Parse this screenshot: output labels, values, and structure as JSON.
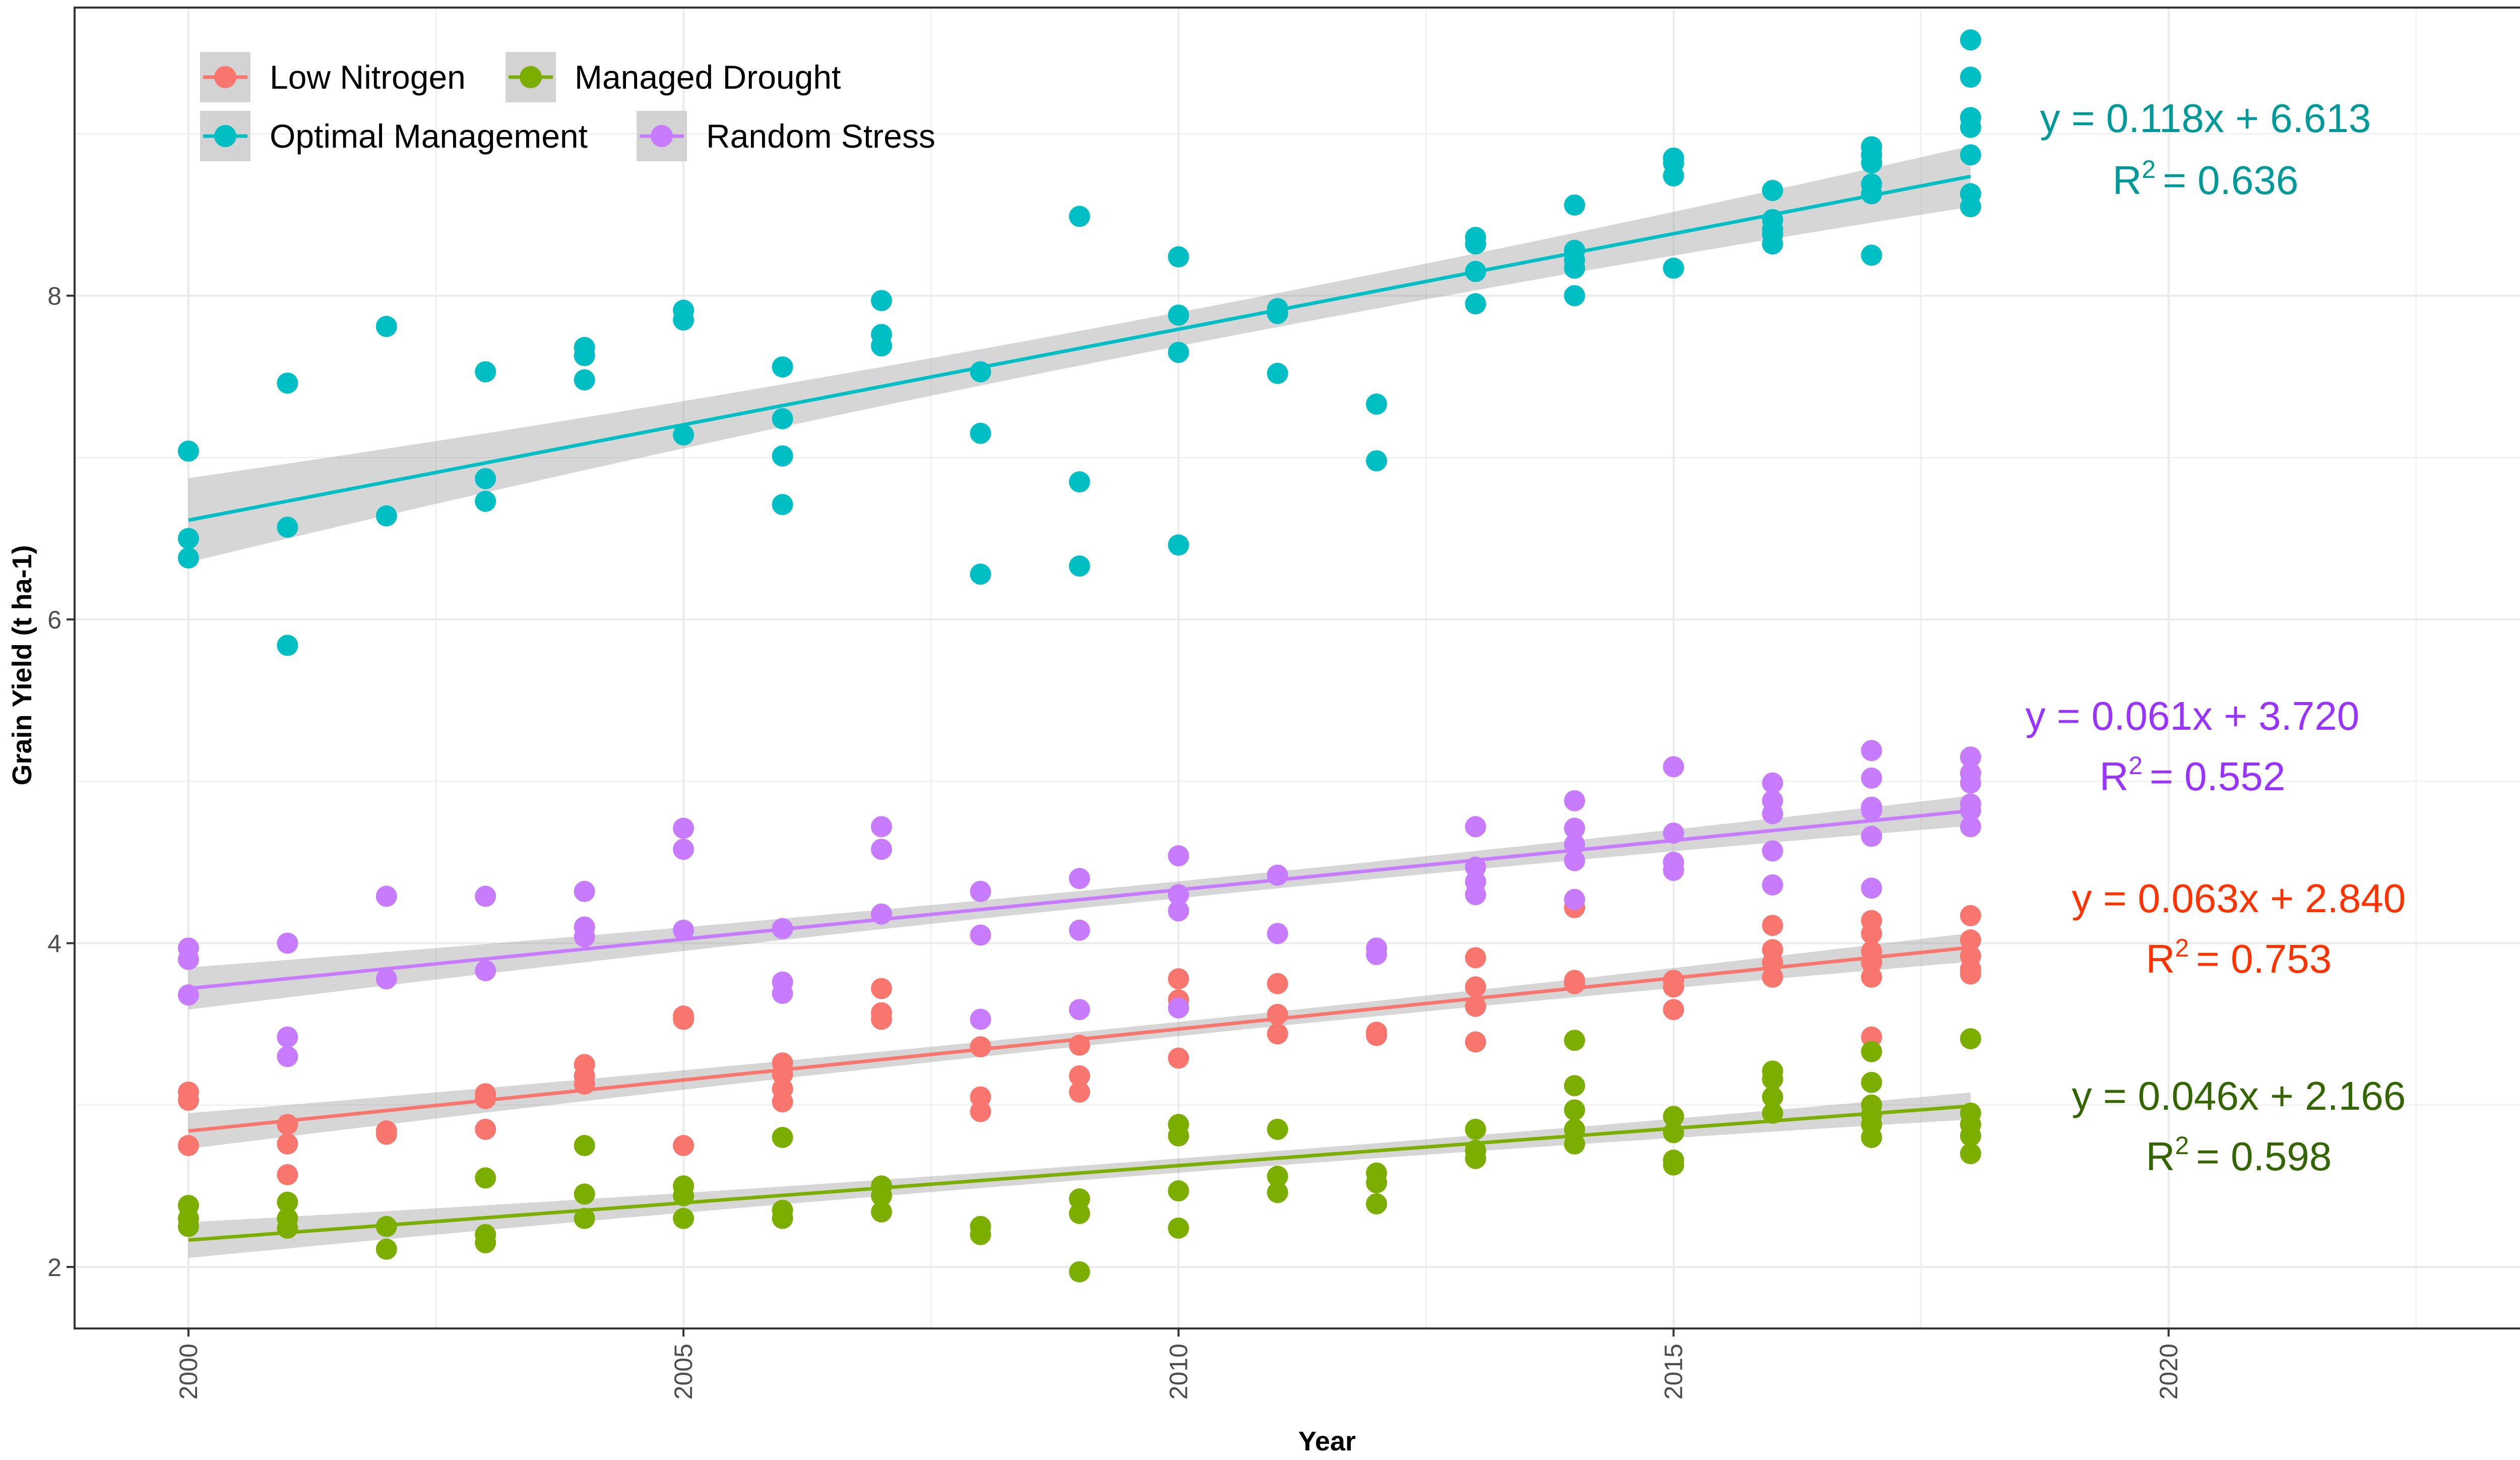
{
  "chart_data": {
    "type": "scatter",
    "title": "",
    "xlabel": "Year",
    "ylabel": "Grain Yield (t ha-1)",
    "xlim": [
      1998.85,
      2024.15
    ],
    "ylim": [
      1.62,
      9.78
    ],
    "x_ticks": [
      2000,
      2005,
      2010,
      2015,
      2020
    ],
    "y_ticks": [
      2,
      4,
      6,
      8
    ],
    "grid": true,
    "legend_position": "top-left",
    "series": [
      {
        "name": "Low Nitrogen",
        "color": "#F8766D",
        "fit": {
          "slope": 0.063,
          "intercept": 2.84,
          "x0": 2000,
          "band": 0.11
        },
        "equation": "y = 0.063x + 2.840",
        "r2_label": "R",
        "r2_value": "= 0.753",
        "equation_color": "#FF3300",
        "points": [
          [
            2000,
            3.08
          ],
          [
            2000,
            3.03
          ],
          [
            2000,
            2.75
          ],
          [
            2001,
            2.88
          ],
          [
            2001,
            2.76
          ],
          [
            2001,
            2.57
          ],
          [
            2002,
            2.84
          ],
          [
            2002,
            2.82
          ],
          [
            2003,
            3.07
          ],
          [
            2003,
            3.04
          ],
          [
            2003,
            2.85
          ],
          [
            2004,
            3.25
          ],
          [
            2004,
            3.18
          ],
          [
            2004,
            3.13
          ],
          [
            2005,
            3.55
          ],
          [
            2005,
            3.53
          ],
          [
            2005,
            2.75
          ],
          [
            2006,
            3.26
          ],
          [
            2006,
            3.19
          ],
          [
            2006,
            3.1
          ],
          [
            2006,
            3.02
          ],
          [
            2007,
            3.72
          ],
          [
            2007,
            3.57
          ],
          [
            2007,
            3.53
          ],
          [
            2008,
            3.36
          ],
          [
            2008,
            3.05
          ],
          [
            2008,
            2.96
          ],
          [
            2009,
            3.37
          ],
          [
            2009,
            3.18
          ],
          [
            2009,
            3.08
          ],
          [
            2010,
            3.78
          ],
          [
            2010,
            3.65
          ],
          [
            2010,
            3.29
          ],
          [
            2011,
            3.75
          ],
          [
            2011,
            3.56
          ],
          [
            2011,
            3.44
          ],
          [
            2012,
            3.45
          ],
          [
            2012,
            3.43
          ],
          [
            2013,
            3.91
          ],
          [
            2013,
            3.73
          ],
          [
            2013,
            3.61
          ],
          [
            2013,
            3.39
          ],
          [
            2014,
            4.22
          ],
          [
            2014,
            3.77
          ],
          [
            2014,
            3.75
          ],
          [
            2015,
            3.77
          ],
          [
            2015,
            3.73
          ],
          [
            2015,
            3.59
          ],
          [
            2016,
            4.11
          ],
          [
            2016,
            3.96
          ],
          [
            2016,
            3.88
          ],
          [
            2016,
            3.79
          ],
          [
            2017,
            4.14
          ],
          [
            2017,
            4.06
          ],
          [
            2017,
            3.95
          ],
          [
            2017,
            3.88
          ],
          [
            2017,
            3.79
          ],
          [
            2017,
            3.42
          ],
          [
            2018,
            4.17
          ],
          [
            2018,
            4.02
          ],
          [
            2018,
            3.92
          ],
          [
            2018,
            3.84
          ],
          [
            2018,
            3.81
          ]
        ]
      },
      {
        "name": "Managed Drought",
        "color": "#7CAE00",
        "fit": {
          "slope": 0.046,
          "intercept": 2.166,
          "x0": 2000,
          "band": 0.11
        },
        "equation": "y = 0.046x + 2.166",
        "r2_label": "R",
        "r2_value": "= 0.598",
        "equation_color": "#336600",
        "points": [
          [
            2000,
            2.38
          ],
          [
            2000,
            2.3
          ],
          [
            2000,
            2.25
          ],
          [
            2001,
            2.4
          ],
          [
            2001,
            2.3
          ],
          [
            2001,
            2.24
          ],
          [
            2002,
            2.25
          ],
          [
            2002,
            2.11
          ],
          [
            2003,
            2.55
          ],
          [
            2003,
            2.2
          ],
          [
            2003,
            2.15
          ],
          [
            2004,
            2.75
          ],
          [
            2004,
            2.45
          ],
          [
            2004,
            2.3
          ],
          [
            2005,
            2.5
          ],
          [
            2005,
            2.44
          ],
          [
            2005,
            2.3
          ],
          [
            2006,
            2.8
          ],
          [
            2006,
            2.35
          ],
          [
            2006,
            2.3
          ],
          [
            2007,
            2.5
          ],
          [
            2007,
            2.44
          ],
          [
            2007,
            2.34
          ],
          [
            2008,
            2.25
          ],
          [
            2008,
            2.2
          ],
          [
            2009,
            2.42
          ],
          [
            2009,
            2.33
          ],
          [
            2009,
            1.97
          ],
          [
            2010,
            2.88
          ],
          [
            2010,
            2.81
          ],
          [
            2010,
            2.47
          ],
          [
            2010,
            2.24
          ],
          [
            2011,
            2.85
          ],
          [
            2011,
            2.56
          ],
          [
            2011,
            2.46
          ],
          [
            2012,
            2.58
          ],
          [
            2012,
            2.52
          ],
          [
            2012,
            2.39
          ],
          [
            2013,
            2.85
          ],
          [
            2013,
            2.72
          ],
          [
            2013,
            2.67
          ],
          [
            2014,
            3.4
          ],
          [
            2014,
            3.12
          ],
          [
            2014,
            2.97
          ],
          [
            2014,
            2.85
          ],
          [
            2014,
            2.76
          ],
          [
            2015,
            2.93
          ],
          [
            2015,
            2.83
          ],
          [
            2015,
            2.66
          ],
          [
            2015,
            2.63
          ],
          [
            2016,
            3.21
          ],
          [
            2016,
            3.16
          ],
          [
            2016,
            3.05
          ],
          [
            2016,
            2.95
          ],
          [
            2017,
            3.33
          ],
          [
            2017,
            3.14
          ],
          [
            2017,
            3.0
          ],
          [
            2017,
            2.94
          ],
          [
            2017,
            2.88
          ],
          [
            2017,
            2.8
          ],
          [
            2018,
            3.41
          ],
          [
            2018,
            2.95
          ],
          [
            2018,
            2.88
          ],
          [
            2018,
            2.81
          ],
          [
            2018,
            2.7
          ]
        ]
      },
      {
        "name": "Optimal Management",
        "color": "#00BFC4",
        "fit": {
          "slope": 0.118,
          "intercept": 6.613,
          "x0": 2000,
          "band": 0.26
        },
        "equation": "y = 0.118x + 6.613",
        "r2_label": "R",
        "r2_value": "= 0.636",
        "equation_color": "#009999",
        "points": [
          [
            2000,
            7.04
          ],
          [
            2000,
            6.5
          ],
          [
            2000,
            6.38
          ],
          [
            2001,
            7.46
          ],
          [
            2001,
            6.57
          ],
          [
            2001,
            5.84
          ],
          [
            2002,
            7.81
          ],
          [
            2002,
            6.64
          ],
          [
            2003,
            7.53
          ],
          [
            2003,
            6.87
          ],
          [
            2003,
            6.73
          ],
          [
            2004,
            7.68
          ],
          [
            2004,
            7.63
          ],
          [
            2004,
            7.48
          ],
          [
            2005,
            7.91
          ],
          [
            2005,
            7.85
          ],
          [
            2005,
            7.14
          ],
          [
            2006,
            7.56
          ],
          [
            2006,
            7.24
          ],
          [
            2006,
            7.01
          ],
          [
            2006,
            6.71
          ],
          [
            2007,
            7.97
          ],
          [
            2007,
            7.76
          ],
          [
            2007,
            7.69
          ],
          [
            2008,
            7.53
          ],
          [
            2008,
            7.15
          ],
          [
            2008,
            6.28
          ],
          [
            2009,
            8.49
          ],
          [
            2009,
            6.85
          ],
          [
            2009,
            6.33
          ],
          [
            2010,
            8.24
          ],
          [
            2010,
            7.88
          ],
          [
            2010,
            7.65
          ],
          [
            2010,
            6.46
          ],
          [
            2011,
            7.92
          ],
          [
            2011,
            7.89
          ],
          [
            2011,
            7.52
          ],
          [
            2012,
            7.33
          ],
          [
            2012,
            6.98
          ],
          [
            2013,
            8.36
          ],
          [
            2013,
            8.32
          ],
          [
            2013,
            8.15
          ],
          [
            2013,
            7.95
          ],
          [
            2014,
            8.56
          ],
          [
            2014,
            8.28
          ],
          [
            2014,
            8.22
          ],
          [
            2014,
            8.17
          ],
          [
            2014,
            8.0
          ],
          [
            2015,
            8.85
          ],
          [
            2015,
            8.82
          ],
          [
            2015,
            8.74
          ],
          [
            2015,
            8.17
          ],
          [
            2016,
            8.65
          ],
          [
            2016,
            8.47
          ],
          [
            2016,
            8.41
          ],
          [
            2016,
            8.38
          ],
          [
            2016,
            8.32
          ],
          [
            2017,
            8.92
          ],
          [
            2017,
            8.87
          ],
          [
            2017,
            8.82
          ],
          [
            2017,
            8.69
          ],
          [
            2017,
            8.63
          ],
          [
            2017,
            8.25
          ],
          [
            2018,
            9.58
          ],
          [
            2018,
            9.35
          ],
          [
            2018,
            9.1
          ],
          [
            2018,
            9.04
          ],
          [
            2018,
            8.87
          ],
          [
            2018,
            8.63
          ],
          [
            2018,
            8.55
          ]
        ]
      },
      {
        "name": "Random Stress",
        "color": "#C77CFF",
        "fit": {
          "slope": 0.061,
          "intercept": 3.72,
          "x0": 2000,
          "band": 0.13
        },
        "equation": "y = 0.061x + 3.720",
        "r2_label": "R",
        "r2_value": "= 0.552",
        "equation_color": "#9933FF",
        "points": [
          [
            2000,
            3.97
          ],
          [
            2000,
            3.9
          ],
          [
            2000,
            3.68
          ],
          [
            2001,
            4.0
          ],
          [
            2001,
            3.42
          ],
          [
            2001,
            3.3
          ],
          [
            2002,
            4.29
          ],
          [
            2002,
            3.78
          ],
          [
            2003,
            4.29
          ],
          [
            2003,
            3.83
          ],
          [
            2004,
            4.32
          ],
          [
            2004,
            4.1
          ],
          [
            2004,
            4.04
          ],
          [
            2005,
            4.71
          ],
          [
            2005,
            4.58
          ],
          [
            2005,
            4.08
          ],
          [
            2006,
            4.09
          ],
          [
            2006,
            3.76
          ],
          [
            2006,
            3.69
          ],
          [
            2007,
            4.72
          ],
          [
            2007,
            4.58
          ],
          [
            2007,
            4.18
          ],
          [
            2008,
            4.32
          ],
          [
            2008,
            4.05
          ],
          [
            2008,
            3.53
          ],
          [
            2009,
            4.4
          ],
          [
            2009,
            4.08
          ],
          [
            2009,
            3.59
          ],
          [
            2010,
            4.54
          ],
          [
            2010,
            4.3
          ],
          [
            2010,
            4.2
          ],
          [
            2010,
            3.6
          ],
          [
            2011,
            4.42
          ],
          [
            2011,
            4.06
          ],
          [
            2012,
            3.97
          ],
          [
            2012,
            3.93
          ],
          [
            2013,
            4.72
          ],
          [
            2013,
            4.47
          ],
          [
            2013,
            4.38
          ],
          [
            2013,
            4.3
          ],
          [
            2014,
            4.88
          ],
          [
            2014,
            4.71
          ],
          [
            2014,
            4.61
          ],
          [
            2014,
            4.51
          ],
          [
            2014,
            4.27
          ],
          [
            2015,
            5.09
          ],
          [
            2015,
            4.68
          ],
          [
            2015,
            4.5
          ],
          [
            2015,
            4.45
          ],
          [
            2016,
            4.99
          ],
          [
            2016,
            4.88
          ],
          [
            2016,
            4.8
          ],
          [
            2016,
            4.57
          ],
          [
            2016,
            4.36
          ],
          [
            2017,
            5.19
          ],
          [
            2017,
            5.02
          ],
          [
            2017,
            4.84
          ],
          [
            2017,
            4.82
          ],
          [
            2017,
            4.66
          ],
          [
            2017,
            4.34
          ],
          [
            2018,
            5.15
          ],
          [
            2018,
            5.05
          ],
          [
            2018,
            4.99
          ],
          [
            2018,
            4.86
          ],
          [
            2018,
            4.82
          ],
          [
            2018,
            4.72
          ]
        ]
      }
    ]
  }
}
